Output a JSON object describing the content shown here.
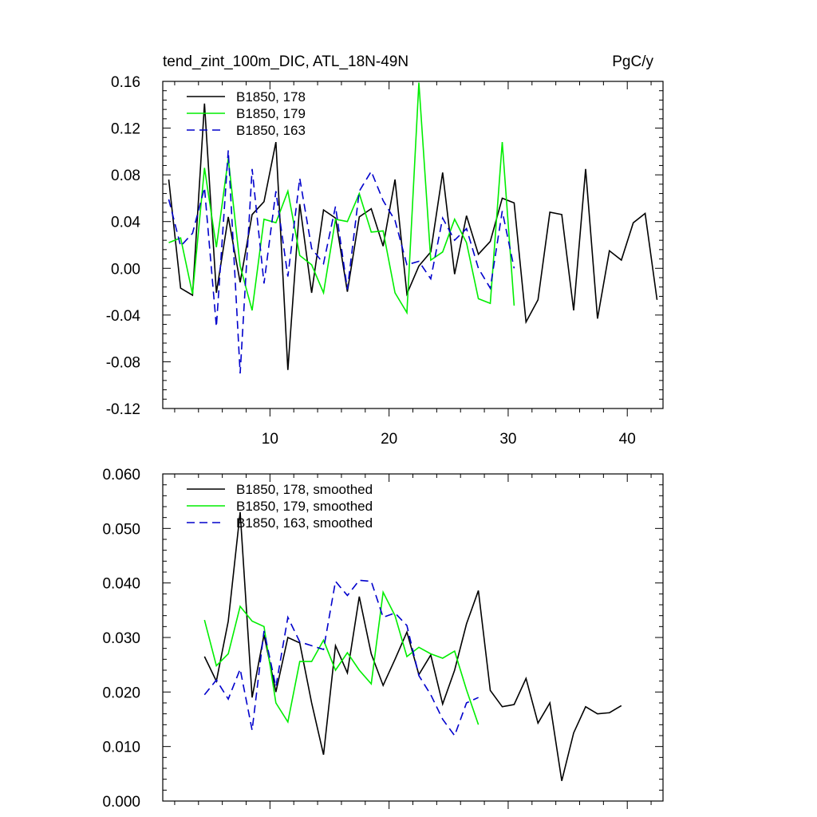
{
  "chart_data": [
    {
      "type": "line",
      "title": "tend_zint_100m_DIC, ATL_18N-49N",
      "units": "PgC/y",
      "xlim": [
        1,
        43
      ],
      "ylim": [
        -0.12,
        0.16
      ],
      "xticks": [
        10,
        20,
        30,
        40
      ],
      "xtick_labels": [
        "10",
        "20",
        "30",
        "40"
      ],
      "yticks": [
        -0.12,
        -0.08,
        -0.04,
        0.0,
        0.04,
        0.08,
        0.12,
        0.16
      ],
      "ytick_labels": [
        "-0.12",
        "-0.08",
        "-0.04",
        "0.00",
        "0.04",
        "0.08",
        "0.12",
        "0.16"
      ],
      "legend_position": "top-left",
      "series": [
        {
          "name": "B1850, 178",
          "color": "#000000",
          "dash": "solid",
          "x_start": 1.5,
          "values": [
            0.076,
            -0.017,
            -0.023,
            0.141,
            -0.021,
            0.044,
            -0.012,
            0.046,
            0.057,
            0.108,
            -0.087,
            0.055,
            -0.021,
            0.05,
            0.043,
            -0.02,
            0.044,
            0.051,
            0.019,
            0.076,
            -0.022,
            0.002,
            0.014,
            0.082,
            -0.005,
            0.045,
            0.012,
            0.023,
            0.06,
            0.056,
            -0.046,
            -0.027,
            0.048,
            0.046,
            -0.036,
            0.085,
            -0.043,
            0.015,
            0.007,
            0.039,
            0.047,
            -0.027
          ]
        },
        {
          "name": "B1850, 179",
          "color": "#00ee00",
          "dash": "solid",
          "x_start": 1.5,
          "values": [
            0.022,
            0.026,
            -0.022,
            0.086,
            0.018,
            0.094,
            0.002,
            -0.036,
            0.042,
            0.039,
            0.066,
            0.011,
            0.003,
            -0.021,
            0.042,
            0.04,
            0.064,
            0.031,
            0.032,
            -0.021,
            -0.038,
            0.159,
            0.007,
            0.014,
            0.042,
            0.022,
            -0.026,
            -0.03,
            0.108,
            -0.032
          ]
        },
        {
          "name": "B1850, 163",
          "color": "#0000cc",
          "dash": "dashed",
          "x_start": 1.5,
          "values": [
            0.059,
            0.019,
            0.03,
            0.069,
            -0.05,
            0.101,
            -0.09,
            0.085,
            -0.013,
            0.066,
            -0.007,
            0.077,
            0.017,
            0.004,
            0.053,
            -0.018,
            0.066,
            0.083,
            0.058,
            0.041,
            0.003,
            0.006,
            -0.009,
            0.043,
            0.024,
            0.034,
            0.0,
            -0.017,
            0.049,
            0.0
          ]
        }
      ]
    },
    {
      "type": "line",
      "title": "",
      "units": "",
      "xlim": [
        1,
        43
      ],
      "ylim": [
        0.0,
        0.06
      ],
      "xticks": [
        10,
        20,
        30,
        40
      ],
      "xtick_labels": [],
      "yticks": [
        0.0,
        0.01,
        0.02,
        0.03,
        0.04,
        0.05,
        0.06
      ],
      "ytick_labels": [
        "0.000",
        "0.010",
        "0.020",
        "0.030",
        "0.040",
        "0.050",
        "0.060"
      ],
      "legend_position": "top-left",
      "series": [
        {
          "name": "B1850, 178, smoothed",
          "color": "#000000",
          "dash": "solid",
          "x_start": 4.5,
          "values": [
            0.0265,
            0.022,
            0.033,
            0.053,
            0.019,
            0.0305,
            0.02,
            0.03,
            0.029,
            0.018,
            0.0085,
            0.0285,
            0.0235,
            0.0375,
            0.027,
            0.0212,
            0.026,
            0.031,
            0.0232,
            0.0268,
            0.0178,
            0.024,
            0.0325,
            0.0386,
            0.0203,
            0.0173,
            0.0177,
            0.0225,
            0.0143,
            0.018,
            0.0037,
            0.0125,
            0.0173,
            0.016,
            0.0162,
            0.0175
          ]
        },
        {
          "name": "B1850, 179, smoothed",
          "color": "#00ee00",
          "dash": "solid",
          "x_start": 4.5,
          "values": [
            0.0332,
            0.0248,
            0.027,
            0.0357,
            0.033,
            0.032,
            0.018,
            0.0145,
            0.0256,
            0.0256,
            0.0295,
            0.024,
            0.0272,
            0.024,
            0.0215,
            0.0383,
            0.034,
            0.0265,
            0.0282,
            0.027,
            0.0262,
            0.0275,
            0.0204,
            0.014
          ]
        },
        {
          "name": "B1850, 163, smoothed",
          "color": "#0000cc",
          "dash": "dashed",
          "x_start": 4.5,
          "values": [
            0.0195,
            0.0222,
            0.0187,
            0.0242,
            0.013,
            0.0312,
            0.021,
            0.0337,
            0.0292,
            0.0285,
            0.0278,
            0.0403,
            0.0377,
            0.0405,
            0.0403,
            0.0337,
            0.0345,
            0.0322,
            0.023,
            0.0195,
            0.015,
            0.012,
            0.018,
            0.019
          ]
        }
      ]
    }
  ]
}
